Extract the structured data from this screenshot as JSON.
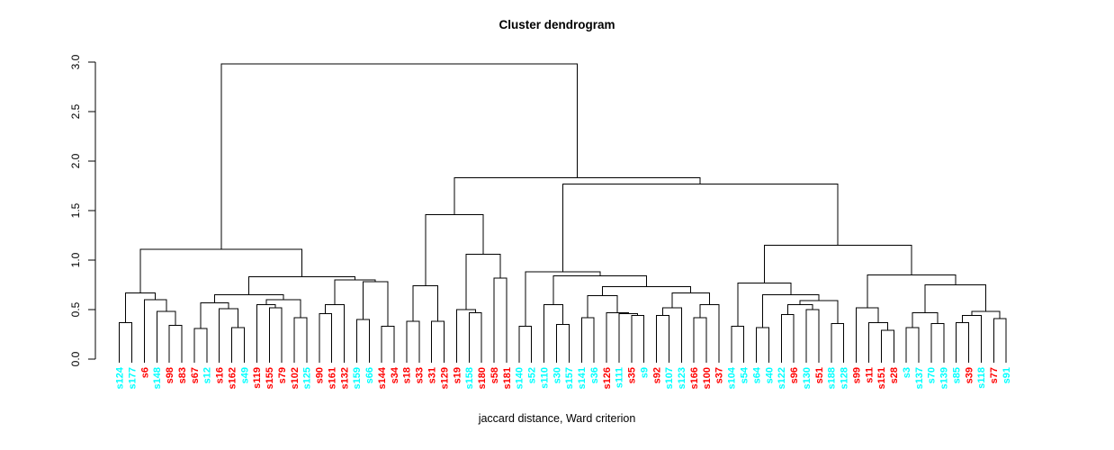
{
  "title": "Cluster dendrogram",
  "xlabel": "jaccard distance, Ward criterion",
  "colors": {
    "cluster_red": "#FF0000",
    "cluster_cyan": "#00FFFF",
    "line": "#000000"
  },
  "chart_data": {
    "type": "dendrogram",
    "title": "Cluster dendrogram",
    "xlabel": "jaccard distance, Ward criterion",
    "ylabel": "",
    "ylim": [
      0.0,
      3.0
    ],
    "yticks": [
      0.0,
      0.5,
      1.0,
      1.5,
      2.0,
      2.5,
      3.0
    ],
    "ytick_labels": [
      "0.0",
      "0.5",
      "1.0",
      "1.5",
      "2.0",
      "2.5",
      "3.0"
    ],
    "grid": false,
    "legend": "none",
    "leaves": [
      {
        "label": "s124",
        "color": "#00FFFF"
      },
      {
        "label": "s177",
        "color": "#00FFFF"
      },
      {
        "label": "s6",
        "color": "#FF0000"
      },
      {
        "label": "s148",
        "color": "#00FFFF"
      },
      {
        "label": "s98",
        "color": "#FF0000"
      },
      {
        "label": "s83",
        "color": "#FF0000"
      },
      {
        "label": "s67",
        "color": "#FF0000"
      },
      {
        "label": "s12",
        "color": "#00FFFF"
      },
      {
        "label": "s16",
        "color": "#FF0000"
      },
      {
        "label": "s162",
        "color": "#FF0000"
      },
      {
        "label": "s49",
        "color": "#00FFFF"
      },
      {
        "label": "s119",
        "color": "#FF0000"
      },
      {
        "label": "s155",
        "color": "#FF0000"
      },
      {
        "label": "s79",
        "color": "#FF0000"
      },
      {
        "label": "s102",
        "color": "#FF0000"
      },
      {
        "label": "s125",
        "color": "#00FFFF"
      },
      {
        "label": "s90",
        "color": "#FF0000"
      },
      {
        "label": "s161",
        "color": "#FF0000"
      },
      {
        "label": "s132",
        "color": "#FF0000"
      },
      {
        "label": "s159",
        "color": "#00FFFF"
      },
      {
        "label": "s66",
        "color": "#00FFFF"
      },
      {
        "label": "s144",
        "color": "#FF0000"
      },
      {
        "label": "s34",
        "color": "#FF0000"
      },
      {
        "label": "s18",
        "color": "#FF0000"
      },
      {
        "label": "s33",
        "color": "#FF0000"
      },
      {
        "label": "s31",
        "color": "#FF0000"
      },
      {
        "label": "s129",
        "color": "#FF0000"
      },
      {
        "label": "s19",
        "color": "#FF0000"
      },
      {
        "label": "s158",
        "color": "#00FFFF"
      },
      {
        "label": "s180",
        "color": "#FF0000"
      },
      {
        "label": "s58",
        "color": "#FF0000"
      },
      {
        "label": "s181",
        "color": "#FF0000"
      },
      {
        "label": "s140",
        "color": "#00FFFF"
      },
      {
        "label": "s52",
        "color": "#00FFFF"
      },
      {
        "label": "s110",
        "color": "#00FFFF"
      },
      {
        "label": "s30",
        "color": "#00FFFF"
      },
      {
        "label": "s157",
        "color": "#00FFFF"
      },
      {
        "label": "s141",
        "color": "#00FFFF"
      },
      {
        "label": "s36",
        "color": "#00FFFF"
      },
      {
        "label": "s126",
        "color": "#FF0000"
      },
      {
        "label": "s111",
        "color": "#00FFFF"
      },
      {
        "label": "s35",
        "color": "#FF0000"
      },
      {
        "label": "s9",
        "color": "#00FFFF"
      },
      {
        "label": "s92",
        "color": "#FF0000"
      },
      {
        "label": "s107",
        "color": "#00FFFF"
      },
      {
        "label": "s123",
        "color": "#00FFFF"
      },
      {
        "label": "s166",
        "color": "#FF0000"
      },
      {
        "label": "s100",
        "color": "#FF0000"
      },
      {
        "label": "s37",
        "color": "#FF0000"
      },
      {
        "label": "s104",
        "color": "#00FFFF"
      },
      {
        "label": "s54",
        "color": "#00FFFF"
      },
      {
        "label": "s64",
        "color": "#00FFFF"
      },
      {
        "label": "s40",
        "color": "#00FFFF"
      },
      {
        "label": "s122",
        "color": "#00FFFF"
      },
      {
        "label": "s96",
        "color": "#FF0000"
      },
      {
        "label": "s130",
        "color": "#00FFFF"
      },
      {
        "label": "s51",
        "color": "#FF0000"
      },
      {
        "label": "s188",
        "color": "#00FFFF"
      },
      {
        "label": "s128",
        "color": "#00FFFF"
      },
      {
        "label": "s99",
        "color": "#FF0000"
      },
      {
        "label": "s11",
        "color": "#FF0000"
      },
      {
        "label": "s151",
        "color": "#FF0000"
      },
      {
        "label": "s28",
        "color": "#FF0000"
      },
      {
        "label": "s3",
        "color": "#00FFFF"
      },
      {
        "label": "s137",
        "color": "#00FFFF"
      },
      {
        "label": "s70",
        "color": "#00FFFF"
      },
      {
        "label": "s139",
        "color": "#00FFFF"
      },
      {
        "label": "s85",
        "color": "#00FFFF"
      },
      {
        "label": "s39",
        "color": "#FF0000"
      },
      {
        "label": "s118",
        "color": "#00FFFF"
      },
      {
        "label": "s77",
        "color": "#FF0000"
      },
      {
        "label": "s91",
        "color": "#00FFFF"
      }
    ],
    "tree": [
      2.98,
      [
        1.11,
        [
          0.67,
          [
            0.37,
            0,
            1
          ],
          [
            0.6,
            2,
            [
              0.48,
              3,
              [
                0.34,
                4,
                5
              ]
            ]
          ]
        ],
        [
          0.83,
          [
            0.65,
            [
              0.57,
              [
                0.31,
                6,
                7
              ],
              [
                0.51,
                8,
                [
                  0.32,
                  9,
                  10
                ]
              ]
            ],
            [
              0.6,
              [
                0.55,
                11,
                [
                  0.52,
                  12,
                  13
                ]
              ],
              [
                0.42,
                14,
                15
              ]
            ]
          ],
          [
            0.8,
            [
              0.55,
              [
                0.46,
                16,
                17
              ],
              18
            ],
            [
              0.78,
              [
                0.4,
                19,
                20
              ],
              [
                0.33,
                21,
                22
              ]
            ]
          ]
        ]
      ],
      [
        1.83,
        [
          1.46,
          [
            0.74,
            [
              0.38,
              23,
              24
            ],
            [
              0.38,
              25,
              26
            ]
          ],
          [
            1.06,
            [
              0.5,
              27,
              [
                0.47,
                28,
                29
              ]
            ],
            [
              0.82,
              30,
              31
            ]
          ]
        ],
        [
          1.77,
          [
            0.88,
            [
              0.33,
              32,
              33
            ],
            [
              0.84,
              [
                0.55,
                34,
                [
                  0.35,
                  35,
                  36
                ]
              ],
              [
                0.73,
                [
                  0.64,
                  [
                    0.42,
                    37,
                    38
                  ],
                  [
                    0.47,
                    39,
                    [
                      0.46,
                      40,
                      [
                        0.44,
                        41,
                        42
                      ]
                    ]
                  ]
                ],
                [
                  0.67,
                  [
                    0.52,
                    [
                      0.44,
                      43,
                      44
                    ],
                    45
                  ],
                  [
                    0.55,
                    [
                      0.42,
                      46,
                      47
                    ],
                    48
                  ]
                ]
              ]
            ]
          ],
          [
            1.15,
            [
              0.77,
              [
                0.33,
                49,
                50
              ],
              [
                0.65,
                [
                  0.32,
                  51,
                  52
                ],
                [
                  0.59,
                  [
                    0.55,
                    [
                      0.45,
                      53,
                      54
                    ],
                    [
                      0.5,
                      55,
                      56
                    ]
                  ],
                  [
                    0.36,
                    57,
                    58
                  ]
                ]
              ]
            ],
            [
              0.85,
              [
                0.52,
                59,
                [
                  0.37,
                  60,
                  [
                    0.29,
                    61,
                    62
                  ]
                ]
              ],
              [
                0.75,
                [
                  0.47,
                  [
                    0.32,
                    63,
                    64
                  ],
                  [
                    0.36,
                    65,
                    66
                  ]
                ],
                [
                  0.48,
                  [
                    0.44,
                    [
                      0.37,
                      67,
                      68
                    ],
                    69
                  ],
                  [
                    0.41,
                    70,
                    71
                  ]
                ]
              ]
            ]
          ]
        ]
      ]
    ]
  }
}
